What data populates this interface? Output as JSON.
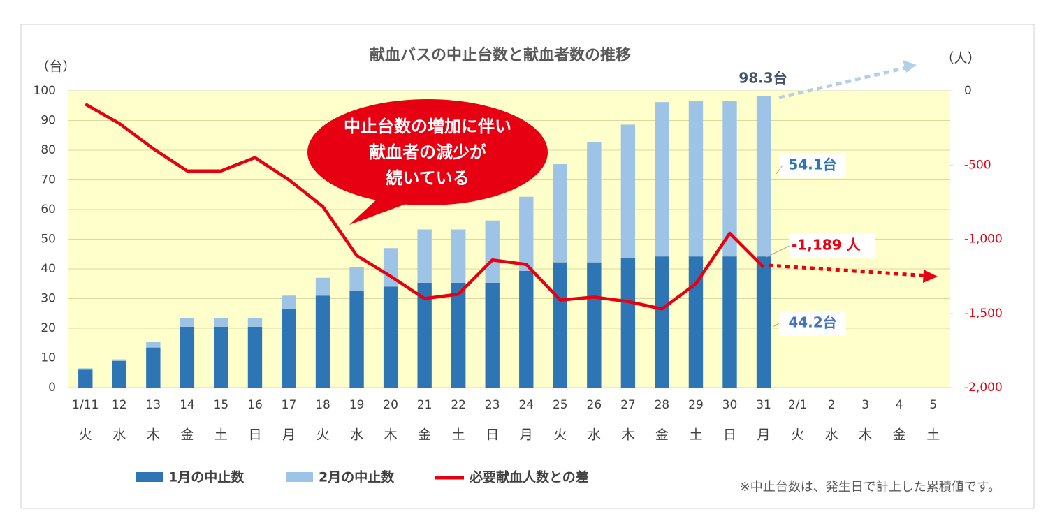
{
  "chart_data": {
    "type": "bar_line",
    "title": "献血バスの中止台数と献血者数の推移",
    "y_unit": "（台）",
    "y2_unit": "（人）",
    "categories": [
      "1/11",
      "12",
      "13",
      "14",
      "15",
      "16",
      "17",
      "18",
      "19",
      "20",
      "21",
      "22",
      "23",
      "24",
      "25",
      "26",
      "27",
      "28",
      "29",
      "30",
      "31",
      "2/1",
      "2",
      "3",
      "4",
      "5"
    ],
    "weekdays": [
      "火",
      "水",
      "木",
      "金",
      "土",
      "日",
      "月",
      "火",
      "水",
      "木",
      "金",
      "土",
      "日",
      "月",
      "火",
      "水",
      "木",
      "金",
      "土",
      "日",
      "月",
      "火",
      "水",
      "木",
      "金",
      "土"
    ],
    "series": [
      {
        "name": "1月の中止数",
        "type": "bar",
        "color": "#2e75b6",
        "values": [
          6,
          9,
          13.5,
          20.5,
          20.5,
          20.5,
          26.5,
          31,
          32.5,
          34,
          35.3,
          35.3,
          35.3,
          39.3,
          42.2,
          42.2,
          43.7,
          44.2,
          44.2,
          44.2,
          44.2,
          null,
          null,
          null,
          null,
          null
        ]
      },
      {
        "name": "2月の中止数",
        "type": "bar",
        "color": "#9dc3e6",
        "values": [
          0.5,
          0.5,
          2,
          3,
          3,
          3,
          4.5,
          6,
          8,
          13,
          18,
          18,
          21,
          25,
          33.1,
          40.4,
          44.9,
          52,
          52.5,
          52.5,
          54.1,
          null,
          null,
          null,
          null,
          null
        ]
      },
      {
        "name": "必要献血人数との差",
        "type": "line",
        "axis": "y2",
        "color": "#e60012",
        "values": [
          -90,
          -220,
          -390,
          -540,
          -540,
          -450,
          -600,
          -780,
          -1110,
          -1250,
          -1400,
          -1370,
          -1140,
          -1170,
          -1410,
          -1390,
          -1420,
          -1470,
          -1300,
          -960,
          -1189,
          null,
          null,
          null,
          null,
          null
        ]
      }
    ],
    "ylim": [
      0,
      100
    ],
    "yticks": [
      0,
      10,
      20,
      30,
      40,
      50,
      60,
      70,
      80,
      90,
      100
    ],
    "y2lim": [
      -2000,
      0
    ],
    "y2ticks": [
      0,
      -500,
      {
        "value": -1000,
        "label": "-1,000"
      },
      {
        "value": -1500,
        "label": "-1,500"
      },
      {
        "value": -2000,
        "label": "-2,000"
      }
    ],
    "grid": true,
    "annotations": [
      "98.3台",
      "54.1台",
      "44.2台",
      "-1,189 人"
    ],
    "callout": [
      "中止台数の増加に伴い",
      "献血者の減少が",
      "続いている"
    ],
    "note": "※中止台数は、発生日で計上した累積値です。"
  }
}
